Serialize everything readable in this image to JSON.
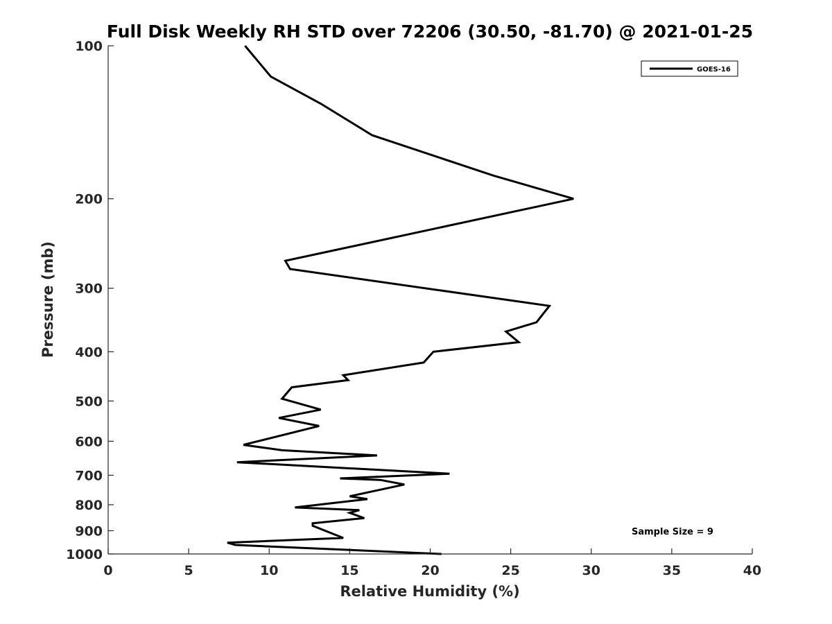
{
  "chart_data": {
    "type": "line",
    "title": "Full Disk Weekly RH STD over 72206 (30.50, -81.70) @ 2021-01-25",
    "xlabel": "Relative Humidity (%)",
    "ylabel": "Pressure (mb)",
    "xlim": [
      0,
      40
    ],
    "ylim": [
      100,
      1000
    ],
    "yscale": "log",
    "y_reversed": true,
    "xticks": [
      0,
      5,
      10,
      15,
      20,
      25,
      30,
      35,
      40
    ],
    "yticks": [
      100,
      200,
      300,
      400,
      500,
      600,
      700,
      800,
      900,
      1000
    ],
    "grid": false,
    "legend_position": "top-right",
    "annotation": "Sample Size = 9",
    "series": [
      {
        "name": "GOES-16",
        "color": "#000000",
        "x": [
          20.7,
          7.9,
          7.4,
          14.6,
          12.7,
          12.7,
          15.9,
          15.0,
          15.6,
          11.6,
          16.1,
          15.0,
          18.4,
          16.9,
          14.4,
          21.2,
          8.0,
          16.7,
          10.8,
          8.4,
          13.1,
          10.6,
          13.2,
          10.8,
          11.4,
          14.9,
          14.6,
          19.6,
          20.2,
          25.5,
          24.7,
          26.6,
          27.4,
          11.3,
          11.0,
          28.9,
          23.9,
          16.4,
          13.2,
          10.1,
          8.5
        ],
        "y": [
          1000,
          960,
          950,
          930,
          880,
          870,
          850,
          830,
          820,
          810,
          780,
          770,
          730,
          715,
          710,
          695,
          660,
          640,
          625,
          610,
          560,
          540,
          520,
          495,
          470,
          455,
          445,
          420,
          400,
          383,
          365,
          350,
          325,
          275,
          265,
          200,
          180,
          150,
          130,
          115,
          100
        ]
      }
    ]
  }
}
